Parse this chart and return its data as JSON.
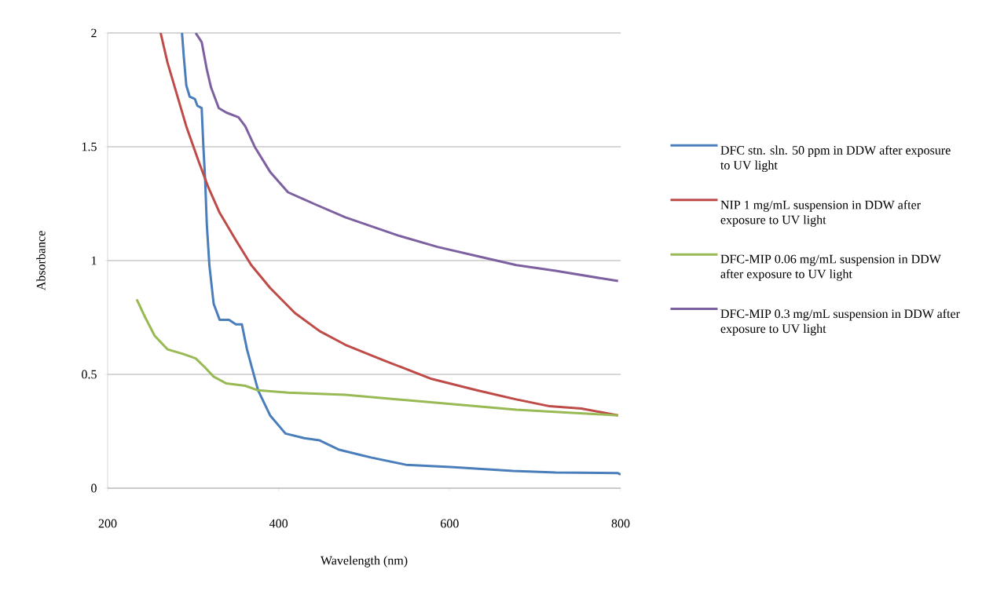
{
  "chart_data": {
    "type": "line",
    "xlabel": "Wavelength (nm)",
    "ylabel": "Absorbance",
    "xlim": [
      200,
      800
    ],
    "xticks": [
      200,
      400,
      600,
      800
    ],
    "ylim": [
      0,
      2
    ],
    "yticks": [
      0,
      0.5,
      1,
      1.5,
      2
    ],
    "grid": "y",
    "legend": "right",
    "line_style": "solid",
    "series": [
      {
        "name": "DFC stn. sln. 50 ppm in DDW after exposure to UV light",
        "color": "#4a7ebb",
        "x": [
          287,
          289,
          292,
          296,
          302,
          305,
          310,
          312,
          314,
          316,
          319,
          324,
          331,
          342,
          350,
          357,
          363,
          368,
          376,
          390,
          408,
          430,
          448,
          470,
          497,
          509,
          549,
          601,
          674,
          724,
          797,
          800
        ],
        "values": [
          2.0,
          1.9,
          1.77,
          1.72,
          1.71,
          1.68,
          1.67,
          1.5,
          1.36,
          1.16,
          0.98,
          0.81,
          0.74,
          0.74,
          0.72,
          0.72,
          0.61,
          0.54,
          0.43,
          0.32,
          0.24,
          0.22,
          0.21,
          0.17,
          0.145,
          0.134,
          0.103,
          0.093,
          0.076,
          0.069,
          0.066,
          0.06
        ]
      },
      {
        "name": "NIP 1 mg/mL suspension in DDW after exposure to UV light",
        "color": "#be4b48",
        "x": [
          262,
          270,
          281,
          292,
          307,
          318,
          331,
          350,
          368,
          390,
          419,
          448,
          478,
          524,
          579,
          632,
          678,
          717,
          754,
          797
        ],
        "values": [
          2.0,
          1.87,
          1.73,
          1.59,
          1.43,
          1.32,
          1.21,
          1.09,
          0.98,
          0.88,
          0.77,
          0.69,
          0.63,
          0.56,
          0.48,
          0.43,
          0.39,
          0.36,
          0.35,
          0.32
        ]
      },
      {
        "name": "DFC-MIP 0.06 mg/mL suspension in DDW after exposure to UV light",
        "color": "#98b954",
        "x": [
          234,
          244,
          255,
          270,
          288,
          303,
          314,
          324,
          339,
          361,
          376,
          411,
          478,
          586,
          678,
          797
        ],
        "values": [
          0.83,
          0.75,
          0.67,
          0.61,
          0.59,
          0.57,
          0.53,
          0.49,
          0.46,
          0.45,
          0.43,
          0.42,
          0.41,
          0.375,
          0.345,
          0.32
        ]
      },
      {
        "name": "DFC-MIP 0.3 mg/mL suspension in DDW after exposure to UV light",
        "color": "#7d60a0",
        "x": [
          303,
          310,
          316,
          321,
          330,
          339,
          353,
          361,
          372,
          390,
          411,
          441,
          478,
          540,
          586,
          632,
          678,
          724,
          797
        ],
        "values": [
          2.0,
          1.96,
          1.84,
          1.76,
          1.67,
          1.65,
          1.63,
          1.59,
          1.5,
          1.39,
          1.3,
          1.25,
          1.19,
          1.11,
          1.06,
          1.02,
          0.98,
          0.955,
          0.91
        ]
      }
    ]
  }
}
